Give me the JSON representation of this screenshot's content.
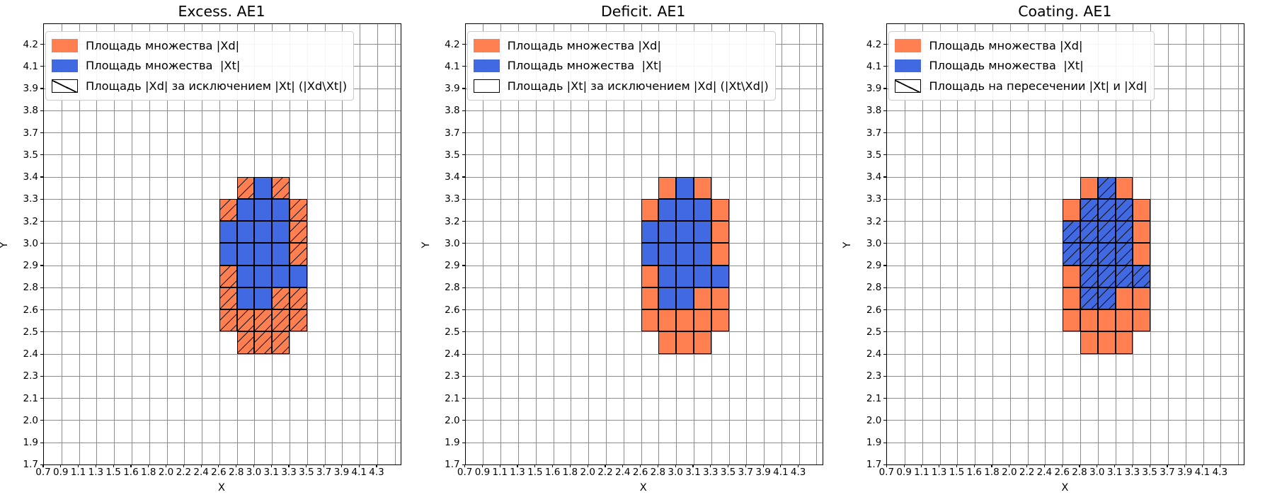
{
  "page": {
    "background": "#ffffff"
  },
  "colors": {
    "xd": "#FF7F50",
    "xt": "#4169E1",
    "hatch": "#111111",
    "grid": "#8c8c8c",
    "spine": "#000000",
    "cell_edge": "#000000",
    "legend_border": "#cccccc",
    "legend_bg": "rgba(255,255,255,0.9)",
    "text": "#000000"
  },
  "chart_data": {
    "type": "heatmap",
    "description": "Three grid plots comparing set Xd (orange cells) and set Xt (blue cells) on an X/Y lattice; hatching marks Xd\\Xt (left), Xt\\Xd (middle, empty), and the intersection Xt∩Xd (right).",
    "axes": {
      "xlabel": "X",
      "ylabel": "Y",
      "grid": true,
      "x_tick_labels": [
        "0.7",
        "0.9",
        "1.1",
        "1.3",
        "1.5",
        "1.6",
        "1.8",
        "2.0",
        "2.2",
        "2.4",
        "2.6",
        "2.8",
        "3.0",
        "3.1",
        "3.3",
        "3.5",
        "3.7",
        "3.9",
        "4.1",
        "4.3"
      ],
      "y_tick_labels_bottom_to_top": [
        "1.7",
        "1.9",
        "2.0",
        "2.1",
        "2.3",
        "2.4",
        "2.5",
        "2.6",
        "2.8",
        "2.9",
        "3.0",
        "3.2",
        "3.3",
        "3.4",
        "3.5",
        "3.7",
        "3.8",
        "3.9",
        "4.1",
        "4.2"
      ]
    },
    "cells": {
      "note": "Xd = orange cell (set Xd only), Xt = blue cell (set Xt); null = empty. Same cell layout in all three subplots.",
      "col_x_intervals": [
        [
          2.6,
          2.8
        ],
        [
          2.8,
          3.0
        ],
        [
          3.0,
          3.1
        ],
        [
          3.1,
          3.3
        ],
        [
          3.3,
          3.5
        ]
      ],
      "row_y_intervals_top_to_bottom": [
        [
          3.3,
          3.4
        ],
        [
          3.2,
          3.3
        ],
        [
          3.0,
          3.2
        ],
        [
          2.9,
          3.0
        ],
        [
          2.8,
          2.9
        ],
        [
          2.6,
          2.8
        ],
        [
          2.5,
          2.6
        ],
        [
          2.4,
          2.5
        ]
      ],
      "matrix_top_to_bottom": [
        [
          null,
          "Xd",
          "Xt",
          "Xd",
          null
        ],
        [
          "Xd",
          "Xt",
          "Xt",
          "Xt",
          "Xd"
        ],
        [
          "Xt",
          "Xt",
          "Xt",
          "Xt",
          "Xd"
        ],
        [
          "Xt",
          "Xt",
          "Xt",
          "Xt",
          "Xd"
        ],
        [
          "Xd",
          "Xt",
          "Xt",
          "Xt",
          "Xt"
        ],
        [
          "Xd",
          "Xt",
          "Xt",
          "Xd",
          "Xd"
        ],
        [
          "Xd",
          "Xd",
          "Xd",
          "Xd",
          "Xd"
        ],
        [
          null,
          "Xd",
          "Xd",
          "Xd",
          null
        ]
      ]
    },
    "subplots": [
      {
        "title": "Excess. AE1",
        "hatched": "Xd",
        "legend": [
          {
            "swatch": "xd",
            "label": "Площадь множества |Xd|"
          },
          {
            "swatch": "xt",
            "label": "Площадь множества  |Xt|"
          },
          {
            "swatch": "hatch",
            "label": "Площадь |Xd| за исключением |Xt| (|Xd\\Xt|)"
          }
        ]
      },
      {
        "title": "Deficit. AE1",
        "hatched": "none",
        "legend": [
          {
            "swatch": "xd",
            "label": "Площадь множества |Xd|"
          },
          {
            "swatch": "xt",
            "label": "Площадь множества  |Xt|"
          },
          {
            "swatch": "empty",
            "label": "Площадь |Xt| за исключением |Xd| (|Xt\\Xd|)"
          }
        ]
      },
      {
        "title": "Coating. AE1",
        "hatched": "Xt",
        "legend": [
          {
            "swatch": "xd",
            "label": "Площадь множества |Xd|"
          },
          {
            "swatch": "xt",
            "label": "Площадь множества  |Xt|"
          },
          {
            "swatch": "hatch",
            "label": "Площадь на пересечении |Xt| и |Xd|"
          }
        ]
      }
    ]
  }
}
